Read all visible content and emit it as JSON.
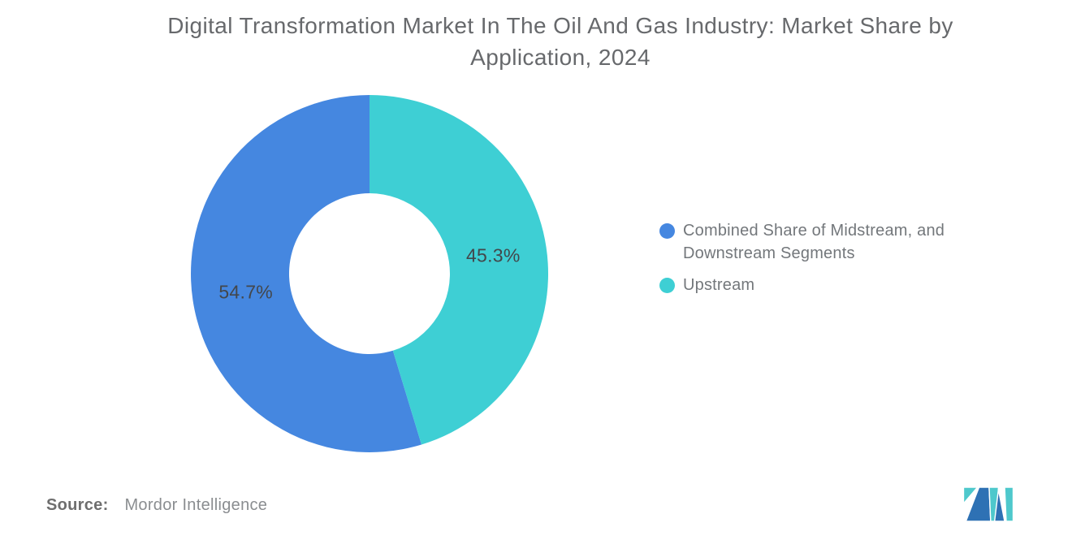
{
  "title": {
    "line1": "Digital Transformation Market In The Oil And Gas Industry: Market Share by",
    "line2": "Application, 2024"
  },
  "chart_data": {
    "type": "pie",
    "subtype": "donut",
    "title": "Digital Transformation Market In The Oil And Gas Industry: Market Share by Application, 2024",
    "unit": "%",
    "start_angle": "top",
    "direction": "clockwise",
    "inner_radius_ratio": 0.45,
    "legend_position": "right",
    "slices": [
      {
        "label": "Combined Share of Midstream, and Downstream Segments",
        "value": 54.7,
        "display": "54.7%",
        "color": "#4587E0",
        "start_deg": 163.08,
        "end_deg": 360
      },
      {
        "label": "Upstream",
        "value": 45.3,
        "display": "45.3%",
        "color": "#3ECFD4",
        "start_deg": 0,
        "end_deg": 163.08
      }
    ]
  },
  "legend": {
    "items": [
      {
        "label": "Combined Share of Midstream, and Downstream Segments",
        "color": "#4587E0"
      },
      {
        "label": "Upstream",
        "color": "#3ECFD4"
      }
    ]
  },
  "source": {
    "label": "Source:",
    "text": "Mordor Intelligence"
  },
  "brand": {
    "logo_icon": "mordor-intelligence-logo",
    "logo_blue": "#2E71B4",
    "logo_teal": "#4EC8CC"
  }
}
